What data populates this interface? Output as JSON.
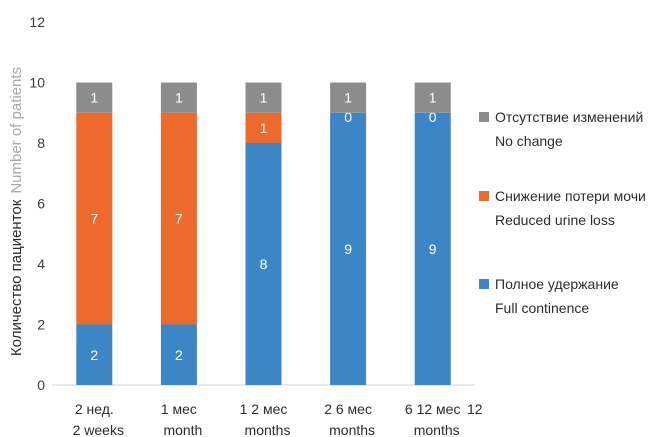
{
  "chart_data": {
    "type": "bar",
    "stacked": true,
    "ylabel_ru": "Количество пациенток",
    "ylabel_en": "Number of patients",
    "ylim": [
      0,
      12
    ],
    "yticks": [
      "0",
      "2",
      "4",
      "6",
      "8",
      "10",
      "12"
    ],
    "grid": false,
    "legend_position": "right",
    "categories": [
      {
        "line1": "2 нед.",
        "line2": "2 weeks"
      },
      {
        "line1": "1 мес",
        "line2": "month"
      },
      {
        "line1": "1 2 мес",
        "line2": "months"
      },
      {
        "line1": "2 6 мес",
        "line2": "months"
      },
      {
        "line1": "6 12 мес",
        "line2": "months"
      }
    ],
    "trailing_tick_label": "12",
    "series": [
      {
        "name_ru": "Полное удержание",
        "name_en": "Full continence",
        "color": "#3d86c6",
        "values": [
          2,
          2,
          8,
          9,
          9
        ]
      },
      {
        "name_ru": "Снижение потери мочи",
        "name_en": "Reduced urine loss",
        "color": "#ec6a2c",
        "values": [
          7,
          7,
          1,
          0,
          0
        ]
      },
      {
        "name_ru": "Отсутствие изменений",
        "name_en": "No change",
        "color": "#8c8c8c",
        "values": [
          1,
          1,
          1,
          1,
          1
        ]
      }
    ]
  }
}
